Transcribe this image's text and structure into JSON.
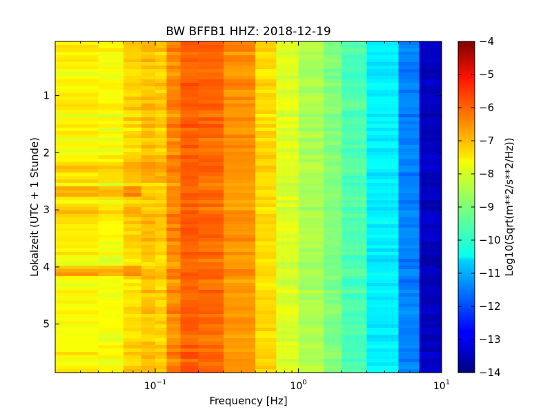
{
  "chart_data": {
    "type": "heatmap",
    "title": "BW BFFB1 HHZ: 2018-12-19",
    "xlabel": "Frequency [Hz]",
    "ylabel": "Lokalzeit (UTC + 1 Stunde)",
    "x_scale": "log",
    "xlim": [
      0.02,
      10
    ],
    "ylim": [
      5.85,
      0.05
    ],
    "x_ticks": [
      {
        "base": "10",
        "exp": "−1",
        "value": 0.1
      },
      {
        "base": "10",
        "exp": "0",
        "value": 1
      },
      {
        "base": "10",
        "exp": "1",
        "value": 10
      }
    ],
    "y_ticks": [
      {
        "label": "1",
        "value": 1
      },
      {
        "label": "2",
        "value": 2
      },
      {
        "label": "3",
        "value": 3
      },
      {
        "label": "4",
        "value": 4
      },
      {
        "label": "5",
        "value": 5
      }
    ],
    "colorbar": {
      "label": "Log10(Sqrt(m**2/s**2/Hz))",
      "colormap": "jet",
      "range": [
        -14,
        -4
      ],
      "ticks": [
        {
          "label": "−4",
          "value": -4
        },
        {
          "label": "−5",
          "value": -5
        },
        {
          "label": "−6",
          "value": -6
        },
        {
          "label": "−7",
          "value": -7
        },
        {
          "label": "−8",
          "value": -8
        },
        {
          "label": "−9",
          "value": -9
        },
        {
          "label": "−10",
          "value": -10
        },
        {
          "label": "−11",
          "value": -11
        },
        {
          "label": "−12",
          "value": -12
        },
        {
          "label": "−13",
          "value": -13
        },
        {
          "label": "−14",
          "value": -14
        }
      ]
    },
    "frequency_bins": [
      0.02,
      0.04,
      0.06,
      0.08,
      0.1,
      0.12,
      0.15,
      0.2,
      0.3,
      0.5,
      0.7,
      1,
      1.5,
      2,
      3,
      5,
      7,
      10
    ],
    "mean_spectrum": [
      -7.7,
      -7.8,
      -7.4,
      -7.2,
      -7.3,
      -6.6,
      -6.2,
      -6.3,
      -6.7,
      -7.4,
      -8.1,
      -8.6,
      -9.0,
      -9.5,
      -10.4,
      -11.5,
      -13.4,
      -13.6
    ],
    "anomalies": [
      {
        "time_range": [
          2.6,
          2.75
        ],
        "max_freq": 0.08,
        "delta": 0.8
      },
      {
        "time_range": [
          2.95,
          3.05
        ],
        "max_freq": 0.08,
        "delta": 0.6
      },
      {
        "time_range": [
          4.0,
          4.15
        ],
        "max_freq": 0.09,
        "delta": 0.7
      },
      {
        "time_range": [
          2.15,
          2.55
        ],
        "max_freq": 0.12,
        "delta": 0.35
      }
    ]
  }
}
